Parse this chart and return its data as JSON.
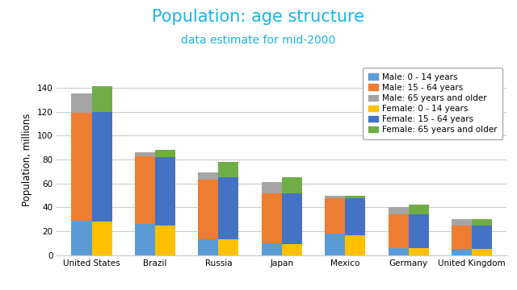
{
  "title": "Population: age structure",
  "subtitle": "data estimate for mid-2000",
  "title_color": "#1ab3e8",
  "subtitle_color": "#1ab3e8",
  "ylabel": "Population, millions",
  "ylim": [
    0,
    160
  ],
  "yticks": [
    0,
    20,
    40,
    60,
    80,
    100,
    120,
    140
  ],
  "countries": [
    "United States",
    "Brazil",
    "Russia",
    "Japan",
    "Mexico",
    "Germany",
    "United Kingdom"
  ],
  "series": {
    "Male: 0 - 14 years": [
      29,
      26,
      13,
      10,
      18,
      6,
      5
    ],
    "Male: 15 - 64 years": [
      90,
      57,
      50,
      42,
      30,
      28,
      20
    ],
    "Male: 65 years and older": [
      16,
      3,
      6,
      9,
      2,
      6,
      5
    ],
    "Female: 0 - 14 years": [
      28,
      25,
      13,
      9,
      17,
      6,
      5
    ],
    "Female: 15 - 64 years": [
      92,
      57,
      52,
      43,
      31,
      28,
      20
    ],
    "Female: 65 years and older": [
      21,
      6,
      13,
      13,
      2,
      8,
      5
    ]
  },
  "colors": {
    "Male: 0 - 14 years": "#5b9bd5",
    "Male: 15 - 64 years": "#ed7d31",
    "Male: 65 years and older": "#a5a5a5",
    "Female: 0 - 14 years": "#ffc000",
    "Female: 15 - 64 years": "#4472c4",
    "Female: 65 years and older": "#70ad47"
  },
  "bar_width": 0.32,
  "background_color": "#ffffff",
  "plot_bg_color": "#ffffff",
  "grid_color": "#c8c8c8",
  "legend_fontsize": 7.5,
  "axis_label_fontsize": 8.5,
  "tick_fontsize": 7.5,
  "title_fontsize": 15,
  "subtitle_fontsize": 10
}
